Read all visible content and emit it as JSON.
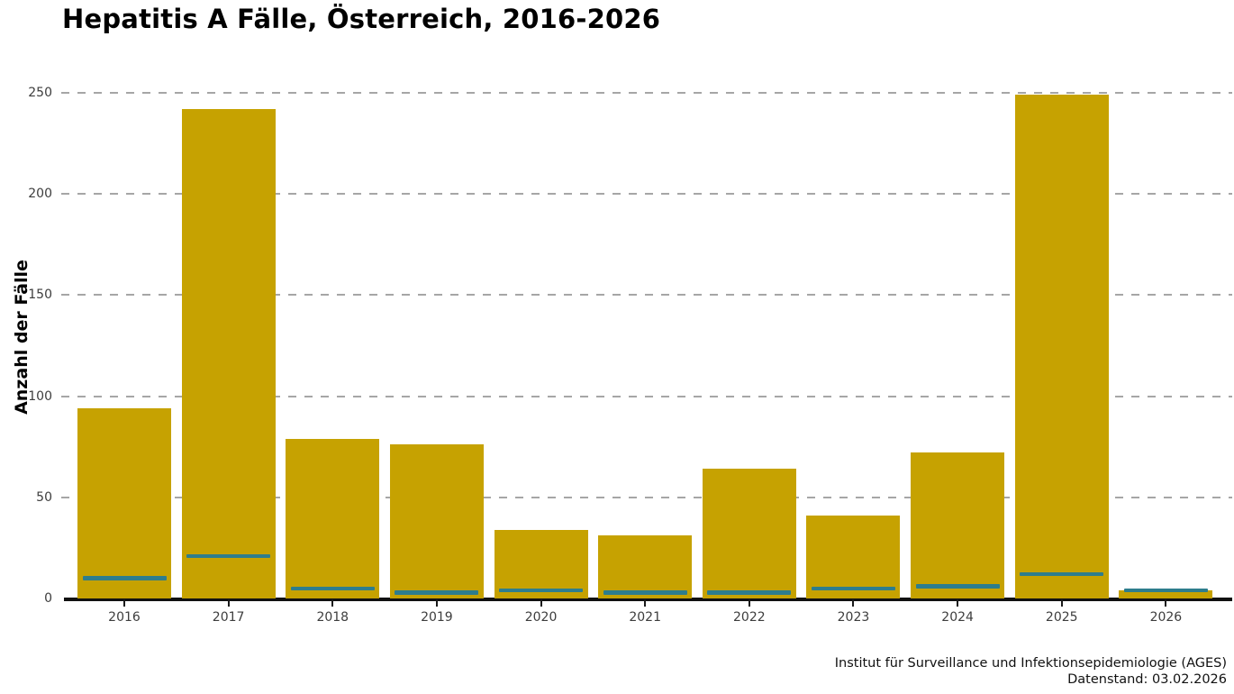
{
  "page": {
    "background": "#ffffff"
  },
  "chart_data": {
    "type": "bar",
    "title": "Hepatitis A Fälle, Österreich, 2016-2026",
    "ylabel": "Anzahl der Fälle",
    "xlabel": "",
    "categories": [
      "2016",
      "2017",
      "2018",
      "2019",
      "2020",
      "2021",
      "2022",
      "2023",
      "2024",
      "2025",
      "2026"
    ],
    "series": [
      {
        "name": "bars",
        "color": "#C6A201",
        "values": [
          94,
          242,
          79,
          76,
          34,
          31,
          64,
          41,
          72,
          249,
          4
        ]
      },
      {
        "name": "markers",
        "color": "#2E7D8C",
        "values": [
          10,
          21,
          5,
          3,
          4,
          3,
          3,
          5,
          6,
          12,
          4
        ]
      }
    ],
    "ylim": [
      0,
      258
    ],
    "yticks": [
      0,
      50,
      100,
      150,
      200,
      250
    ],
    "grid": "horizontal-dashed",
    "legend_position": "none",
    "colors": {
      "grid": "#a6a6a6",
      "axis": "#111111",
      "tick_label": "#3d3d3d",
      "title": "#000000"
    }
  },
  "footer": {
    "line1": "Institut für Surveillance und Infektionsepidemiologie (AGES)",
    "line2": "Datenstand: 03.02.2026"
  }
}
